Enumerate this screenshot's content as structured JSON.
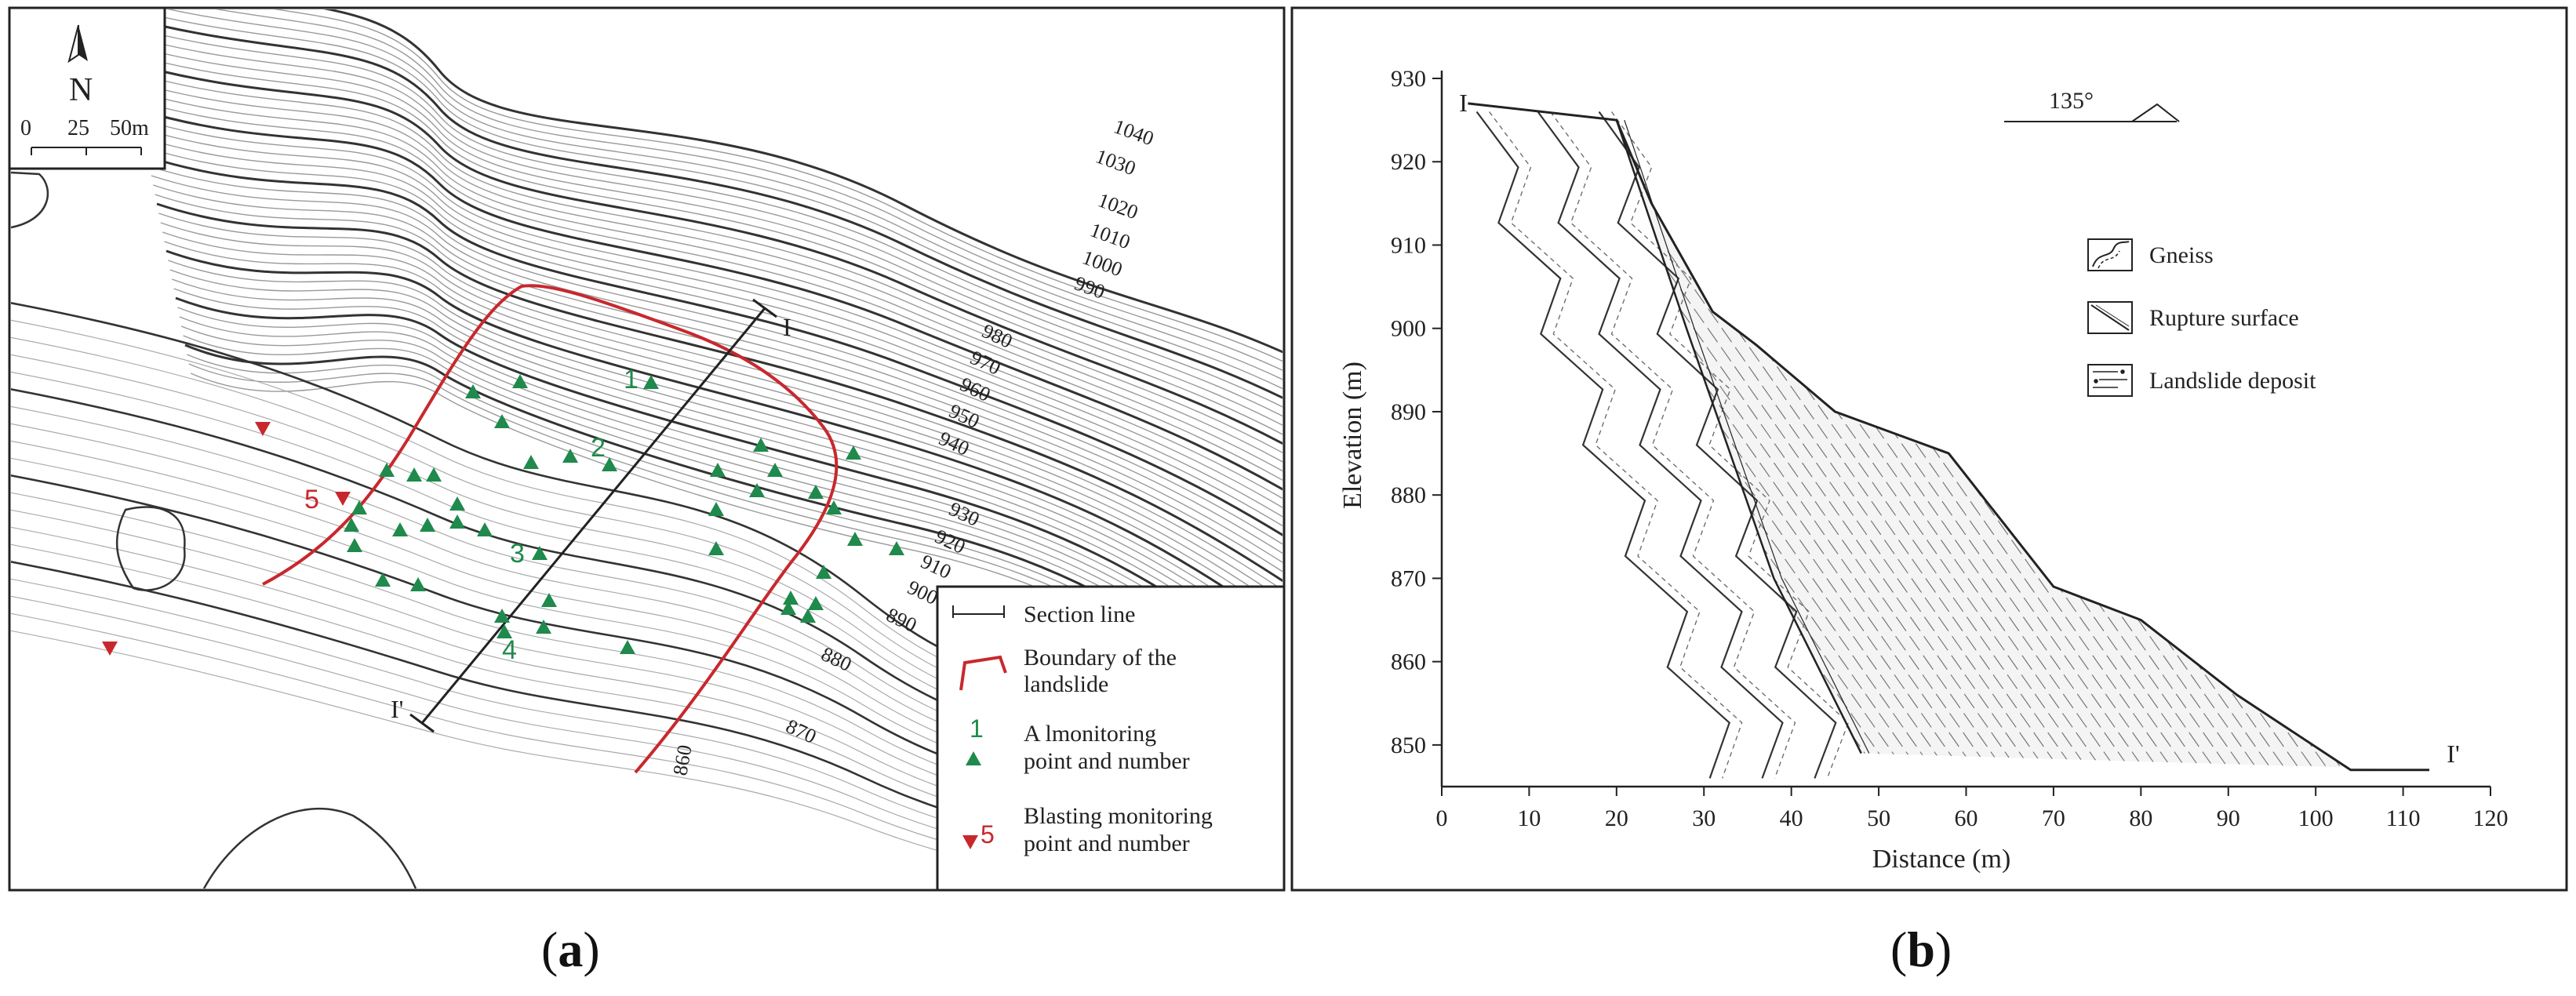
{
  "panel_a": {
    "north_label": "N",
    "scale_ticks": [
      "0",
      "25",
      "50m"
    ],
    "contour_labels": [
      "1040",
      "1030",
      "1020",
      "1010",
      "1000",
      "990",
      "980",
      "970",
      "960",
      "950",
      "940",
      "930",
      "920",
      "910",
      "900",
      "890",
      "880",
      "870",
      "860"
    ],
    "monitoring_numbers": [
      "1",
      "2",
      "3",
      "4"
    ],
    "blasting_number": "5",
    "section_start": "I",
    "section_end": "I'",
    "legend": {
      "section_line": "Section line",
      "boundary_line1": "Boundary of the",
      "boundary_line2": "landslide",
      "monitoring_icon_number": "1",
      "monitoring_line1": "A lmonitoring",
      "monitoring_line2": "point and number",
      "blasting_icon_number": "5",
      "blasting_line1": "Blasting monitoring",
      "blasting_line2": "point and number"
    },
    "colors": {
      "boundary": "#c8282d",
      "monitoring": "#1f8a4c",
      "blasting": "#c8282d"
    }
  },
  "panel_b": {
    "ylabel": "Elevation (m)",
    "xlabel": "Distance (m)",
    "azimuth": "135°",
    "section_start": "I",
    "section_end": "I'",
    "legend": {
      "gneiss": "Gneiss",
      "rupture": "Rupture surface",
      "deposit": "Landslide deposit"
    }
  },
  "chart_data": {
    "type": "area",
    "xlabel": "Distance (m)",
    "ylabel": "Elevation (m)",
    "xlim": [
      0,
      120
    ],
    "ylim": [
      845,
      930
    ],
    "x_ticks": [
      "0",
      "10",
      "20",
      "30",
      "40",
      "50",
      "60",
      "70",
      "80",
      "90",
      "100",
      "110",
      "120"
    ],
    "y_ticks": [
      "850",
      "860",
      "870",
      "880",
      "890",
      "900",
      "910",
      "920",
      "930"
    ],
    "ground_profile": {
      "x": [
        3,
        20,
        24,
        31,
        36,
        45,
        58,
        70,
        80,
        91,
        104,
        113
      ],
      "y": [
        927,
        925,
        915,
        902,
        898,
        890,
        885,
        869,
        865,
        856,
        847,
        847
      ]
    },
    "rupture_surface": {
      "x": [
        20,
        28,
        38,
        48
      ],
      "y": [
        925,
        900,
        870,
        849
      ]
    }
  },
  "captions": {
    "a": "a",
    "b": "b"
  }
}
